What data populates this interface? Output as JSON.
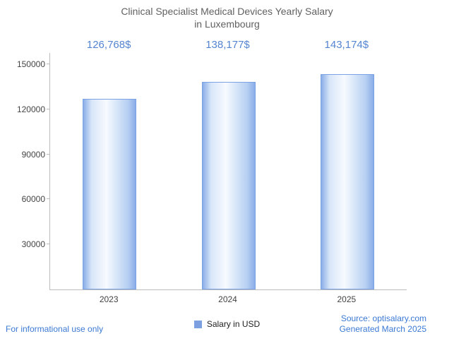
{
  "title": {
    "line1": "Clinical Specialist Medical Devices Yearly Salary",
    "line2": "in Luxembourg"
  },
  "chart_data": {
    "type": "bar",
    "title": "Clinical Specialist Medical Devices Yearly Salary in Luxembourg",
    "categories": [
      "2023",
      "2024",
      "2025"
    ],
    "values": [
      126768,
      138177,
      143174
    ],
    "value_labels": [
      "126,768$",
      "138,177$",
      "143,174$"
    ],
    "series_name": "Salary in USD",
    "xlabel": "",
    "ylabel": "",
    "ylim": [
      0,
      157500
    ],
    "yticks": [
      30000,
      60000,
      90000,
      120000,
      150000
    ],
    "grid": false,
    "legend_position": "bottom"
  },
  "legend": {
    "label": "Salary in USD"
  },
  "footer": {
    "left": "For informational use only",
    "source": "Source: optisalary.com",
    "generated": "Generated March 2025"
  },
  "colors": {
    "title": "#616161",
    "value_label": "#5585d0",
    "footer_link": "#3b79d4",
    "axis": "#bdbdbd",
    "tick_label": "#444444",
    "bar_edge": "#8aade8",
    "bar_center": "#f7faff",
    "bar_border": "#7ba3e4",
    "legend_swatch": "#7d9fe0"
  }
}
